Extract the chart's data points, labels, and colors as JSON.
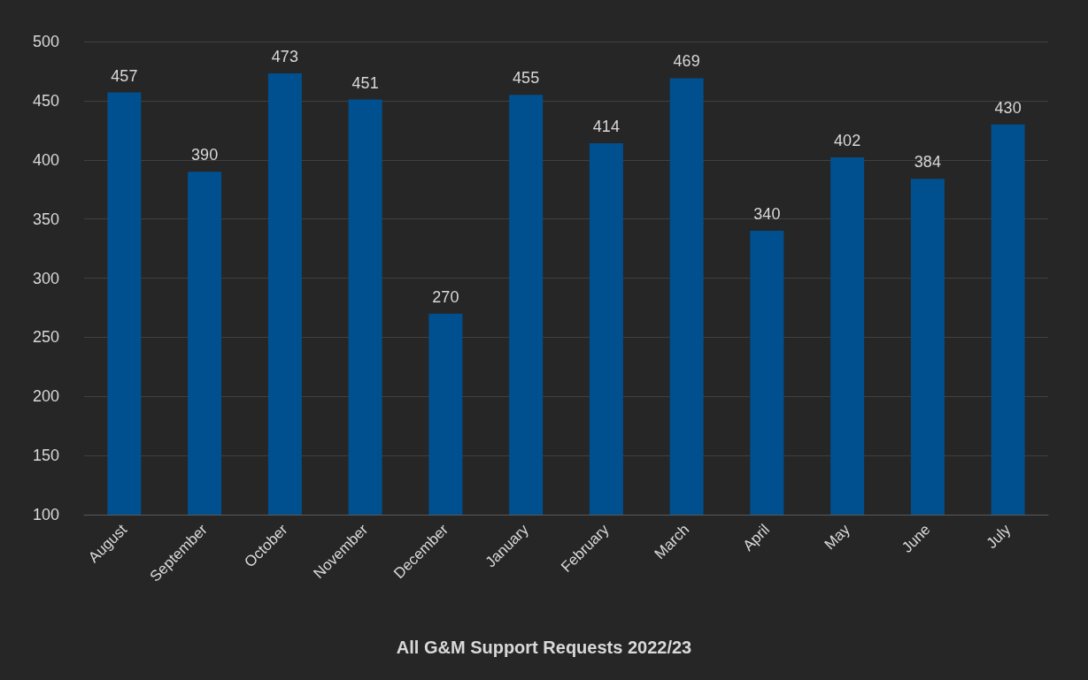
{
  "chart_data": {
    "type": "bar",
    "title": "All G&M Support Requests 2022/23",
    "categories": [
      "August",
      "September",
      "October",
      "November",
      "December",
      "January",
      "February",
      "March",
      "April",
      "May",
      "June",
      "July"
    ],
    "values": [
      457,
      390,
      473,
      451,
      270,
      455,
      414,
      469,
      340,
      402,
      384,
      430
    ],
    "color": "#00508f",
    "ylim": [
      100,
      500
    ],
    "yticks": [
      100,
      150,
      200,
      250,
      300,
      350,
      400,
      450,
      500
    ],
    "grid": "y",
    "data_labels": true
  }
}
